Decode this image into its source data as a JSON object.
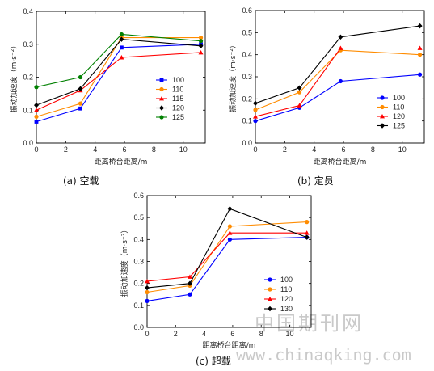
{
  "watermark": {
    "text": "中国期刊网",
    "url": "www.chinaqking.com"
  },
  "chart_data": [
    {
      "type": "line",
      "caption": "(a) 空载",
      "xlabel": "距离桥台距离/m",
      "ylabel": "振动加速度（m·s⁻²）",
      "xlim": [
        0,
        11.5
      ],
      "ylim": [
        0,
        0.4
      ],
      "xticks": [
        0,
        2,
        4,
        6,
        8,
        10
      ],
      "yticks": [
        "0.0",
        "0.1",
        "0.2",
        "0.3",
        "0.4"
      ],
      "legend_position": "right",
      "x": [
        0,
        3,
        5.8,
        11.2
      ],
      "series": [
        {
          "name": "100",
          "color": "#0000ff",
          "marker": "square",
          "values": [
            0.065,
            0.105,
            0.29,
            0.3
          ]
        },
        {
          "name": "110",
          "color": "#ff8c00",
          "marker": "circle",
          "values": [
            0.08,
            0.12,
            0.32,
            0.32
          ]
        },
        {
          "name": "115",
          "color": "#ff0000",
          "marker": "triangle",
          "values": [
            0.1,
            0.16,
            0.26,
            0.275
          ]
        },
        {
          "name": "120",
          "color": "#000000",
          "marker": "diamond",
          "values": [
            0.115,
            0.165,
            0.315,
            0.295
          ]
        },
        {
          "name": "125",
          "color": "#008000",
          "marker": "circle",
          "values": [
            0.17,
            0.2,
            0.33,
            0.31
          ]
        }
      ]
    },
    {
      "type": "line",
      "caption": "(b) 定员",
      "xlabel": "距离桥台距离/m",
      "ylabel": "振动加速度（m·s⁻²）",
      "xlim": [
        0,
        11.5
      ],
      "ylim": [
        0,
        0.6
      ],
      "xticks": [
        0,
        2,
        4,
        6,
        8,
        10
      ],
      "yticks": [
        "0.0",
        "0.1",
        "0.2",
        "0.3",
        "0.4",
        "0.5",
        "0.6"
      ],
      "legend_position": "right",
      "x": [
        0,
        3,
        5.8,
        11.2
      ],
      "series": [
        {
          "name": "100",
          "color": "#0000ff",
          "marker": "circle",
          "values": [
            0.1,
            0.16,
            0.28,
            0.31
          ]
        },
        {
          "name": "110",
          "color": "#ff8c00",
          "marker": "circle",
          "values": [
            0.15,
            0.23,
            0.42,
            0.4
          ]
        },
        {
          "name": "120",
          "color": "#ff0000",
          "marker": "triangle",
          "values": [
            0.12,
            0.17,
            0.43,
            0.43
          ]
        },
        {
          "name": "125",
          "color": "#000000",
          "marker": "diamond",
          "values": [
            0.18,
            0.25,
            0.48,
            0.53
          ]
        }
      ]
    },
    {
      "type": "line",
      "caption": "(c) 超载",
      "xlabel": "距离桥台距离/m",
      "ylabel": "振动加速度（m·s⁻²）",
      "xlim": [
        0,
        11.5
      ],
      "ylim": [
        0,
        0.6
      ],
      "xticks": [
        0,
        2,
        4,
        6,
        8,
        10
      ],
      "yticks": [
        "0.0",
        "0.1",
        "0.2",
        "0.3",
        "0.4",
        "0.5",
        "0.6"
      ],
      "legend_position": "right",
      "x": [
        0,
        3,
        5.8,
        11.2
      ],
      "series": [
        {
          "name": "100",
          "color": "#0000ff",
          "marker": "circle",
          "values": [
            0.12,
            0.15,
            0.4,
            0.41
          ]
        },
        {
          "name": "110",
          "color": "#ff8c00",
          "marker": "circle",
          "values": [
            0.16,
            0.19,
            0.46,
            0.48
          ]
        },
        {
          "name": "120",
          "color": "#ff0000",
          "marker": "triangle",
          "values": [
            0.21,
            0.23,
            0.43,
            0.43
          ]
        },
        {
          "name": "130",
          "color": "#000000",
          "marker": "diamond",
          "values": [
            0.18,
            0.2,
            0.54,
            0.41
          ]
        }
      ]
    }
  ]
}
